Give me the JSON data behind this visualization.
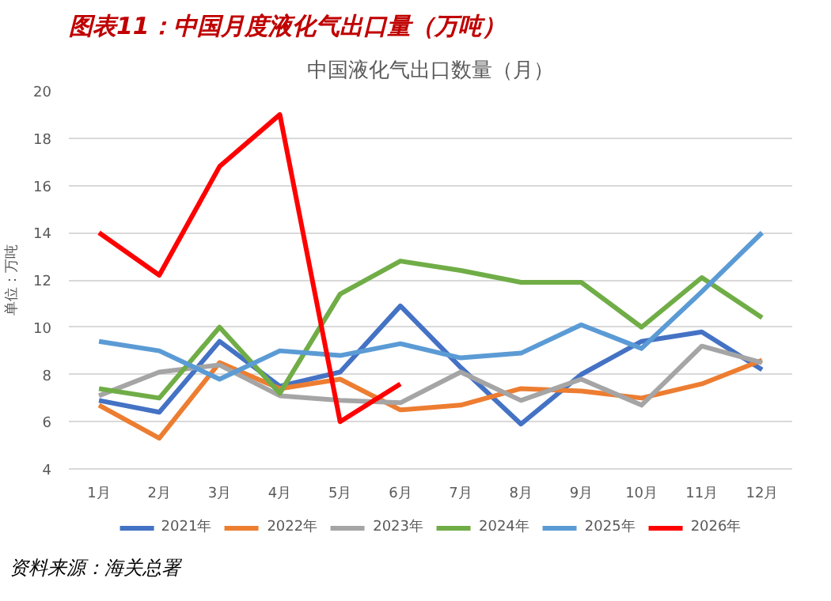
{
  "chart_data": {
    "type": "line",
    "title": "图表11：中国月度液化气出口量（万吨）",
    "subtitle": "中国液化气出口数量（月）",
    "ylabel": "单位：万吨",
    "categories": [
      "1月",
      "2月",
      "3月",
      "4月",
      "5月",
      "6月",
      "7月",
      "8月",
      "9月",
      "10月",
      "11月",
      "12月"
    ],
    "series": [
      {
        "name": "2021年",
        "color": "#4472c4",
        "values": [
          6.9,
          6.4,
          9.4,
          7.5,
          8.1,
          10.9,
          8.3,
          5.9,
          8.0,
          9.4,
          9.8,
          8.2
        ]
      },
      {
        "name": "2022年",
        "color": "#ed7d31",
        "values": [
          6.7,
          5.3,
          8.5,
          7.4,
          7.8,
          6.5,
          6.7,
          7.4,
          7.3,
          7.0,
          7.6,
          8.6
        ]
      },
      {
        "name": "2023年",
        "color": "#a5a5a5",
        "values": [
          7.1,
          8.1,
          8.4,
          7.1,
          6.9,
          6.8,
          8.1,
          6.9,
          7.8,
          6.7,
          9.2,
          8.5
        ]
      },
      {
        "name": "2024年",
        "color": "#70ad47",
        "values": [
          7.4,
          7.0,
          10.0,
          7.2,
          11.4,
          12.8,
          12.4,
          11.9,
          11.9,
          10.0,
          12.1,
          10.4
        ]
      },
      {
        "name": "2025年",
        "color": "#5b9bd5",
        "values": [
          9.4,
          9.0,
          7.8,
          9.0,
          8.8,
          9.3,
          8.7,
          8.9,
          10.1,
          9.1,
          11.5,
          14.0
        ]
      },
      {
        "name": "2026年",
        "color": "#ff0000",
        "values": [
          14.0,
          12.2,
          16.8,
          19.0,
          6.0,
          7.6,
          null,
          null,
          null,
          null,
          null,
          null
        ]
      }
    ],
    "ylim": [
      4,
      20
    ],
    "yticks": [
      4,
      6,
      8,
      10,
      12,
      14,
      16,
      18,
      20
    ],
    "grid": "y",
    "legend": "bottom",
    "marker": "none",
    "line_style": "solid",
    "annotations": [
      "资料来源：海关总署"
    ]
  }
}
